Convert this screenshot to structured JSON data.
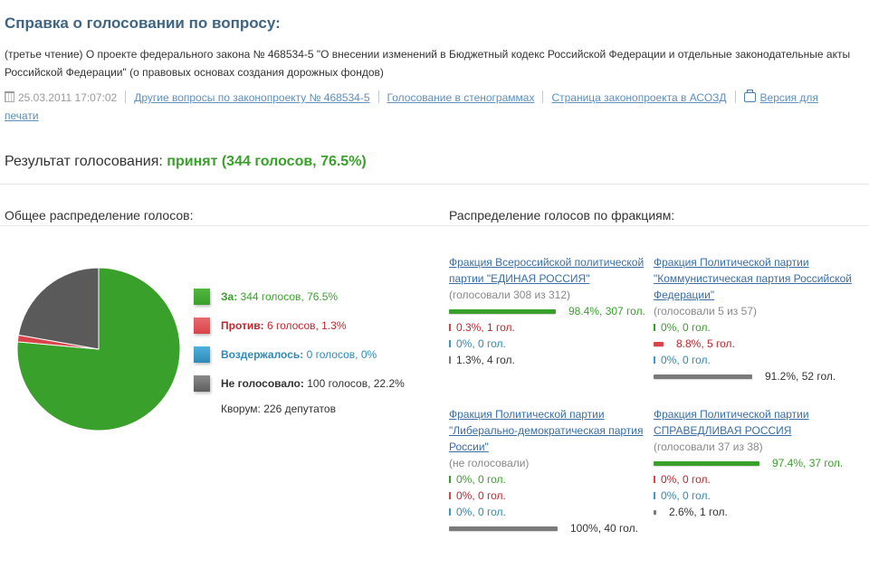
{
  "header": {
    "title": "Справка о голосовании по вопросу:",
    "subject": "(третье чтение) О проекте федерального закона № 468534-5 \"О внесении изменений в Бюджетный кодекс Российской Федерации и отдельные законодательные акты Российской Федерации\" (о правовых основах создания дорожных фондов)",
    "datetime": "25.03.2011 17:07:02",
    "links": [
      {
        "label": "Другие вопросы по законопроекту № 468534-5"
      },
      {
        "label": "Голосование в стенограммах"
      },
      {
        "label": "Страница законопроекта в АСОЗД"
      },
      {
        "label": "Версия для печати"
      }
    ]
  },
  "result": {
    "label": "Результат голосования:",
    "value": "принят (344 голосов, 76.5%)"
  },
  "overall": {
    "heading": "Общее распределение голосов:",
    "legend": [
      {
        "key": "За:",
        "text": "344 голосов, 76.5%",
        "color": "#3aa02c"
      },
      {
        "key": "Против:",
        "text": "6 голосов, 1.3%",
        "color": "#d9434a"
      },
      {
        "key": "Воздержалось:",
        "text": "0 голосов, 0%",
        "color": "#3b9bc8"
      },
      {
        "key": "Не голосовало:",
        "text": "100 голосов, 22.2%",
        "color": "#6e6e6e"
      }
    ],
    "quorum": "Кворум: 226 депутатов"
  },
  "factions_section": {
    "heading": "Распределение голосов по фракциям:",
    "factions": [
      {
        "name": "Фракция Всероссийской политической партии \"ЕДИНАЯ РОССИЯ\"",
        "voted": "(голосовали 308 из 312)",
        "rows": [
          {
            "type": "for",
            "pct": 98.4,
            "text": "98.4%, 307 гол."
          },
          {
            "type": "against",
            "pct": 0.3,
            "text": "0.3%, 1 гол."
          },
          {
            "type": "abst",
            "pct": 0,
            "text": "0%, 0 гол."
          },
          {
            "type": "none",
            "pct": 1.3,
            "text": "1.3%, 4 гол."
          }
        ]
      },
      {
        "name": "Фракция Политической партии \"Коммунистическая партия Российской Федерации\"",
        "voted": "(голосовали 5 из 57)",
        "rows": [
          {
            "type": "for",
            "pct": 0,
            "text": "0%, 0 гол."
          },
          {
            "type": "against",
            "pct": 8.8,
            "text": "8.8%, 5 гол."
          },
          {
            "type": "abst",
            "pct": 0,
            "text": "0%, 0 гол."
          },
          {
            "type": "none",
            "pct": 91.2,
            "text": "91.2%, 52 гол."
          }
        ]
      },
      {
        "name": "Фракция Политической партии \"Либерально-демократическая партия России\"",
        "voted": "(не голосовали)",
        "rows": [
          {
            "type": "for",
            "pct": 0,
            "text": "0%, 0 гол."
          },
          {
            "type": "against",
            "pct": 0,
            "text": "0%, 0 гол."
          },
          {
            "type": "abst",
            "pct": 0,
            "text": "0%, 0 гол."
          },
          {
            "type": "none",
            "pct": 100,
            "text": "100%, 40 гол."
          }
        ]
      },
      {
        "name": "Фракция Политической партии СПРАВЕДЛИВАЯ РОССИЯ",
        "voted": "(голосовали 37 из 38)",
        "rows": [
          {
            "type": "for",
            "pct": 97.4,
            "text": "97.4%, 37 гол."
          },
          {
            "type": "against",
            "pct": 0,
            "text": "0%, 0 гол."
          },
          {
            "type": "abst",
            "pct": 0,
            "text": "0%, 0 гол."
          },
          {
            "type": "none",
            "pct": 2.6,
            "text": "2.6%, 1 гол."
          }
        ]
      }
    ]
  },
  "chart_data": {
    "type": "pie",
    "title": "Общее распределение голосов",
    "categories": [
      "За",
      "Против",
      "Воздержалось",
      "Не голосовало"
    ],
    "values": [
      344,
      6,
      0,
      100
    ],
    "percentages": [
      76.5,
      1.3,
      0,
      22.2
    ],
    "colors": [
      "#3aa02c",
      "#d9434a",
      "#3b9bc8",
      "#5a5a5a"
    ],
    "legend_position": "right"
  }
}
